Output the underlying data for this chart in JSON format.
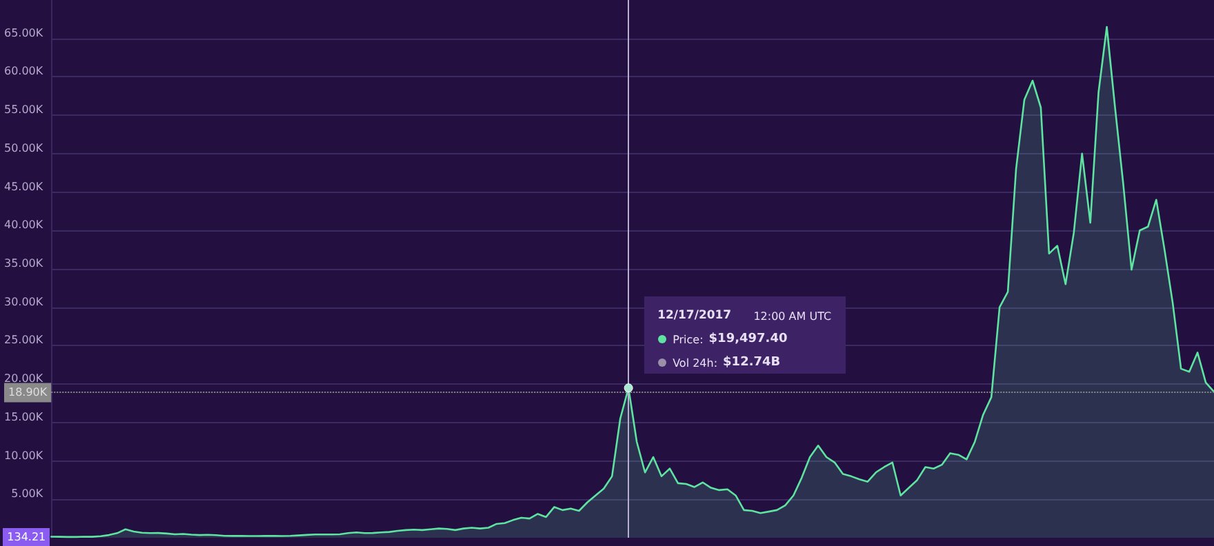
{
  "chart_data": {
    "type": "area",
    "categories": [
      null,
      null,
      null,
      null,
      null,
      null,
      null,
      null,
      null,
      null,
      null,
      null,
      null,
      null,
      null,
      null,
      null,
      null,
      null,
      null,
      null,
      null,
      null,
      null,
      null,
      null,
      null,
      null,
      null,
      null,
      null,
      null,
      null,
      null,
      null,
      null,
      null,
      null,
      null,
      null,
      null,
      null,
      null,
      null,
      null,
      null,
      null,
      null,
      null,
      null,
      null,
      null,
      null,
      null,
      null,
      null,
      null,
      null,
      null,
      null,
      null,
      null,
      null,
      null,
      null,
      null,
      null,
      null,
      null,
      null,
      null,
      null,
      null,
      null,
      null,
      null,
      null,
      null,
      null,
      null,
      null,
      null,
      null,
      null,
      null,
      null,
      null,
      null,
      null,
      null,
      null,
      null,
      null,
      null,
      null,
      null,
      null,
      null,
      null,
      null,
      null,
      null,
      null,
      null,
      null,
      null,
      null,
      null,
      null,
      null,
      null,
      null,
      null,
      null,
      null,
      null,
      null,
      null,
      null,
      null,
      null,
      null,
      null,
      null,
      null,
      null,
      null,
      null,
      null,
      null,
      null,
      null,
      null,
      null,
      null,
      null,
      null,
      null,
      null,
      null,
      null,
      null
    ],
    "series": [
      {
        "color": "#5ee3a1",
        "values": [
          134.21,
          120,
          100,
          100,
          130,
          120,
          200,
          350,
          600,
          1100,
          800,
          650,
          600,
          620,
          550,
          450,
          500,
          400,
          350,
          380,
          330,
          250,
          240,
          250,
          220,
          230,
          240,
          250,
          230,
          250,
          300,
          370,
          420,
          430,
          420,
          450,
          600,
          700,
          600,
          620,
          700,
          750,
          900,
          1000,
          1050,
          1000,
          1100,
          1200,
          1150,
          1000,
          1200,
          1300,
          1200,
          1300,
          1800,
          1900,
          2300,
          2600,
          2500,
          3100,
          2700,
          4000,
          3600,
          3800,
          3500,
          4600,
          5500,
          6400,
          8000,
          15500,
          19497.4,
          12500,
          8500,
          10500,
          8000,
          9000,
          7100,
          7000,
          6600,
          7200,
          6500,
          6200,
          6300,
          5500,
          3600,
          3500,
          3200,
          3400,
          3600,
          4200,
          5500,
          7800,
          10500,
          12000,
          10500,
          9800,
          8300,
          8000,
          7600,
          7300,
          8500,
          9200,
          9800,
          5500,
          6500,
          7500,
          9200,
          9000,
          9500,
          11000,
          10800,
          10200,
          12500,
          16000,
          18300,
          30000,
          32000,
          48000,
          57000,
          59500,
          56000,
          37000,
          38000,
          33000,
          39700,
          50000,
          41000,
          58000,
          66500,
          56000,
          46000,
          34900,
          40000,
          40500,
          44000,
          37500,
          30500,
          22000,
          21600,
          24100,
          20200,
          19000
        ],
        "value_labels": [
          "134.21",
          null,
          null,
          null,
          null,
          null,
          null,
          null,
          null,
          null,
          null,
          null,
          null,
          null,
          null,
          null,
          null,
          null,
          null,
          null,
          null,
          null,
          null,
          null,
          null,
          null,
          null,
          null,
          null,
          null,
          null,
          null,
          null,
          null,
          null,
          null,
          null,
          null,
          null,
          null,
          null,
          null,
          null,
          null,
          null,
          null,
          null,
          null,
          null,
          null,
          null,
          null,
          null,
          null,
          null,
          null,
          null,
          null,
          null,
          null,
          null,
          null,
          null,
          null,
          null,
          null,
          null,
          null,
          null,
          null,
          null,
          null,
          null,
          null,
          null,
          null,
          null,
          null,
          null,
          null,
          null,
          null,
          null,
          null,
          null,
          null,
          null,
          null,
          null,
          null,
          null,
          null,
          null,
          null,
          null,
          null,
          null,
          null,
          null,
          null,
          null,
          null,
          null,
          null,
          null,
          null,
          null,
          null,
          null,
          null,
          null,
          null,
          null,
          null,
          null,
          null,
          null,
          null,
          null,
          null,
          null,
          null,
          null,
          null,
          null,
          null,
          null,
          null,
          null,
          null,
          null,
          null,
          null,
          null,
          null,
          null,
          null,
          null,
          null,
          null,
          null,
          null
        ]
      }
    ],
    "ylim": [
      0,
      70000
    ],
    "yticks": [
      {
        "value": 5000,
        "label": "5.00K"
      },
      {
        "value": 10000,
        "label": "10.00K"
      },
      {
        "value": 15000,
        "label": "15.00K"
      },
      {
        "value": 20000,
        "label": "20.00K"
      },
      {
        "value": 25000,
        "label": "25.00K"
      },
      {
        "value": 30000,
        "label": "30.00K"
      },
      {
        "value": 35000,
        "label": "35.00K"
      },
      {
        "value": 40000,
        "label": "40.00K"
      },
      {
        "value": 45000,
        "label": "45.00K"
      },
      {
        "value": 50000,
        "label": "50.00K"
      },
      {
        "value": 55000,
        "label": "55.00K"
      },
      {
        "value": 60000,
        "label": "60.00K"
      },
      {
        "value": 65000,
        "label": "65.00K"
      }
    ],
    "tick_labels": "y",
    "grid": "y",
    "ref_lines": [
      {
        "axis": "y",
        "value": 18900,
        "label": "18.90K",
        "line_style": "dotted",
        "color": "#8a8a8a"
      }
    ],
    "annotations": [
      "12/17/2017",
      "12:00 AM UTC",
      "Price:",
      "$19,497.40",
      "Vol 24h:",
      "$12.74B"
    ]
  }
}
